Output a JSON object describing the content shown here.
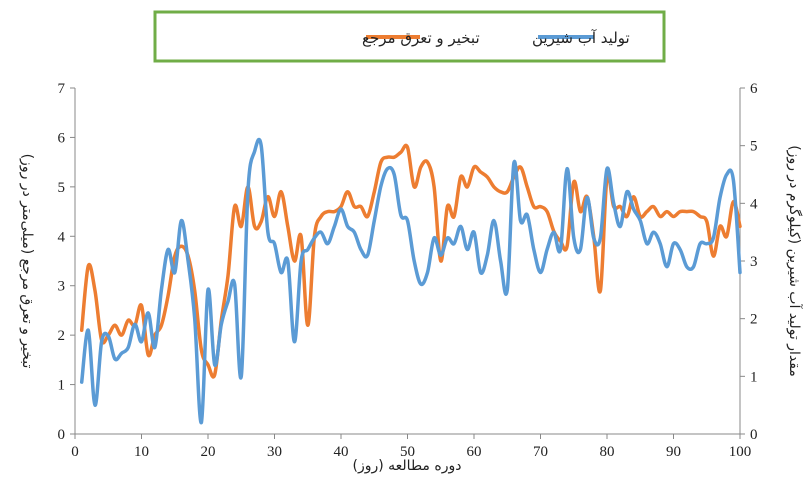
{
  "chart_data": {
    "type": "line",
    "xlabel": "دوره مطالعه (روز)",
    "ylabel_left": "تبخیر و تعرق مرجع (میلی‌متر در روز)",
    "ylabel_right": "مقدار تولید آب شیرین (کیلوگرم در روز)",
    "xlim": [
      0,
      100
    ],
    "ylim_left": [
      0,
      7
    ],
    "ylim_right": [
      0,
      6
    ],
    "x_ticks": [
      0,
      10,
      20,
      30,
      40,
      50,
      60,
      70,
      80,
      90,
      100
    ],
    "y_left_ticks": [
      0,
      1,
      2,
      3,
      4,
      5,
      6,
      7
    ],
    "y_right_ticks": [
      0,
      1,
      2,
      3,
      4,
      5,
      6
    ],
    "grid": false,
    "legend_position": "top-center",
    "x": [
      1,
      2,
      3,
      4,
      5,
      6,
      7,
      8,
      9,
      10,
      11,
      12,
      13,
      14,
      15,
      16,
      17,
      18,
      19,
      20,
      21,
      22,
      23,
      24,
      25,
      26,
      27,
      28,
      29,
      30,
      31,
      32,
      33,
      34,
      35,
      36,
      37,
      38,
      39,
      40,
      41,
      42,
      43,
      44,
      45,
      46,
      47,
      48,
      49,
      50,
      51,
      52,
      53,
      54,
      55,
      56,
      57,
      58,
      59,
      60,
      61,
      62,
      63,
      64,
      65,
      66,
      67,
      68,
      69,
      70,
      71,
      72,
      73,
      74,
      75,
      76,
      77,
      78,
      79,
      80,
      81,
      82,
      83,
      84,
      85,
      86,
      87,
      88,
      89,
      90,
      91,
      92,
      93,
      94,
      95,
      96,
      97,
      98,
      99,
      100
    ],
    "series": [
      {
        "name": "تبخیر و تعرق مرجع",
        "axis": "left",
        "color": "#ED7D31",
        "values": [
          2.1,
          3.4,
          2.9,
          1.9,
          2.0,
          2.2,
          2.0,
          2.3,
          2.2,
          2.6,
          1.6,
          2.0,
          2.2,
          2.8,
          3.6,
          3.8,
          3.6,
          2.9,
          1.7,
          1.4,
          1.2,
          2.3,
          3.2,
          4.6,
          4.2,
          5.0,
          4.2,
          4.3,
          4.8,
          4.4,
          4.9,
          4.2,
          3.5,
          4.0,
          2.2,
          4.0,
          4.4,
          4.5,
          4.5,
          4.6,
          4.9,
          4.6,
          4.6,
          4.4,
          4.9,
          5.5,
          5.6,
          5.6,
          5.7,
          5.8,
          5.0,
          5.4,
          5.5,
          5.0,
          3.5,
          4.6,
          4.4,
          5.2,
          5.0,
          5.4,
          5.3,
          5.2,
          5.0,
          4.9,
          4.9,
          5.2,
          5.4,
          5.0,
          4.6,
          4.6,
          4.5,
          4.1,
          3.9,
          3.8,
          5.1,
          4.5,
          4.8,
          4.0,
          2.9,
          5.2,
          4.6,
          4.6,
          4.4,
          4.8,
          4.4,
          4.5,
          4.6,
          4.4,
          4.5,
          4.4,
          4.5,
          4.5,
          4.5,
          4.4,
          4.3,
          3.6,
          4.2,
          4.0,
          4.7,
          4.2
        ]
      },
      {
        "name": "تولید آب شیرین",
        "axis": "right",
        "color": "#5B9BD5",
        "values": [
          0.9,
          1.8,
          0.5,
          1.6,
          1.7,
          1.3,
          1.4,
          1.5,
          1.9,
          1.6,
          2.1,
          1.5,
          2.5,
          3.2,
          2.8,
          3.7,
          3.0,
          2.0,
          0.2,
          2.5,
          1.2,
          1.9,
          2.3,
          2.6,
          1.0,
          4.2,
          4.9,
          5.0,
          3.5,
          3.3,
          2.8,
          3.0,
          1.6,
          3.0,
          3.2,
          3.4,
          3.5,
          3.3,
          3.6,
          3.9,
          3.6,
          3.5,
          3.2,
          3.1,
          3.7,
          4.3,
          4.6,
          4.5,
          3.8,
          3.7,
          3.0,
          2.6,
          2.8,
          3.4,
          3.1,
          3.4,
          3.3,
          3.6,
          3.2,
          3.5,
          2.8,
          3.1,
          3.7,
          3.0,
          2.5,
          4.7,
          3.7,
          3.8,
          3.2,
          2.8,
          3.2,
          3.5,
          3.2,
          4.6,
          3.4,
          3.2,
          4.1,
          3.4,
          3.4,
          4.6,
          4.0,
          3.6,
          4.2,
          3.9,
          3.7,
          3.3,
          3.5,
          3.3,
          2.9,
          3.3,
          3.2,
          2.9,
          2.9,
          3.3,
          3.3,
          3.4,
          4.1,
          4.5,
          4.4,
          2.8
        ]
      }
    ]
  }
}
